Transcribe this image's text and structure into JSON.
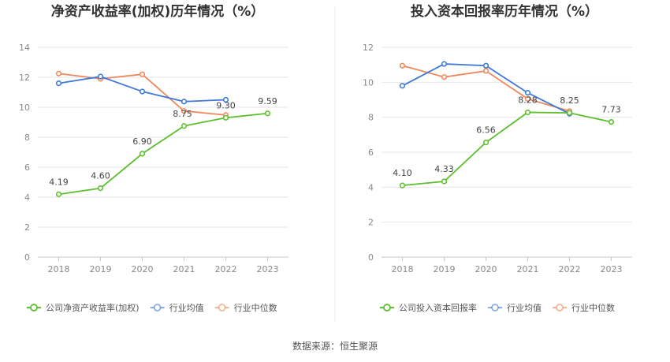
{
  "source_text": "数据来源：恒生聚源",
  "colors": {
    "company": "#5dbf2e",
    "industry_avg": "#3e78d8",
    "industry_median": "#f0875a",
    "grid": "#e6e6ee",
    "axis": "#c8c8d0"
  },
  "chart_data": [
    {
      "type": "line",
      "title": "净资产收益率(加权)历年情况（%）",
      "x": [
        "2018",
        "2019",
        "2020",
        "2021",
        "2022",
        "2023"
      ],
      "ylim": [
        0,
        14
      ],
      "yticks": [
        0,
        2,
        4,
        6,
        8,
        10,
        12,
        14
      ],
      "grid": true,
      "legend_position": "bottom",
      "series": [
        {
          "name": "公司净资产收益率(加权)",
          "key": "company",
          "values": [
            4.19,
            4.6,
            6.9,
            8.75,
            9.3,
            9.59
          ],
          "labels": [
            "4.19",
            "4.60",
            "6.90",
            "8.75",
            "9.30",
            "9.59"
          ]
        },
        {
          "name": "行业均值",
          "key": "industry_avg",
          "values": [
            11.6,
            12.05,
            11.05,
            10.38,
            10.5,
            null
          ]
        },
        {
          "name": "行业中位数",
          "key": "industry_median",
          "values": [
            12.25,
            11.9,
            12.2,
            9.75,
            9.48,
            null
          ]
        }
      ]
    },
    {
      "type": "line",
      "title": "投入资本回报率历年情况（%）",
      "x": [
        "2018",
        "2019",
        "2020",
        "2021",
        "2022",
        "2023"
      ],
      "ylim": [
        0,
        12
      ],
      "yticks": [
        0,
        2,
        4,
        6,
        8,
        10,
        12
      ],
      "grid": true,
      "legend_position": "bottom",
      "series": [
        {
          "name": "公司投入资本回报率",
          "key": "company",
          "values": [
            4.1,
            4.33,
            6.56,
            8.28,
            8.25,
            7.73
          ],
          "labels": [
            "4.10",
            "4.33",
            "6.56",
            "8.28",
            "8.25",
            "7.73"
          ]
        },
        {
          "name": "行业均值",
          "key": "industry_avg",
          "values": [
            9.8,
            11.05,
            10.95,
            9.4,
            8.2,
            null
          ]
        },
        {
          "name": "行业中位数",
          "key": "industry_median",
          "values": [
            10.95,
            10.3,
            10.65,
            9.05,
            8.35,
            null
          ]
        }
      ]
    }
  ]
}
